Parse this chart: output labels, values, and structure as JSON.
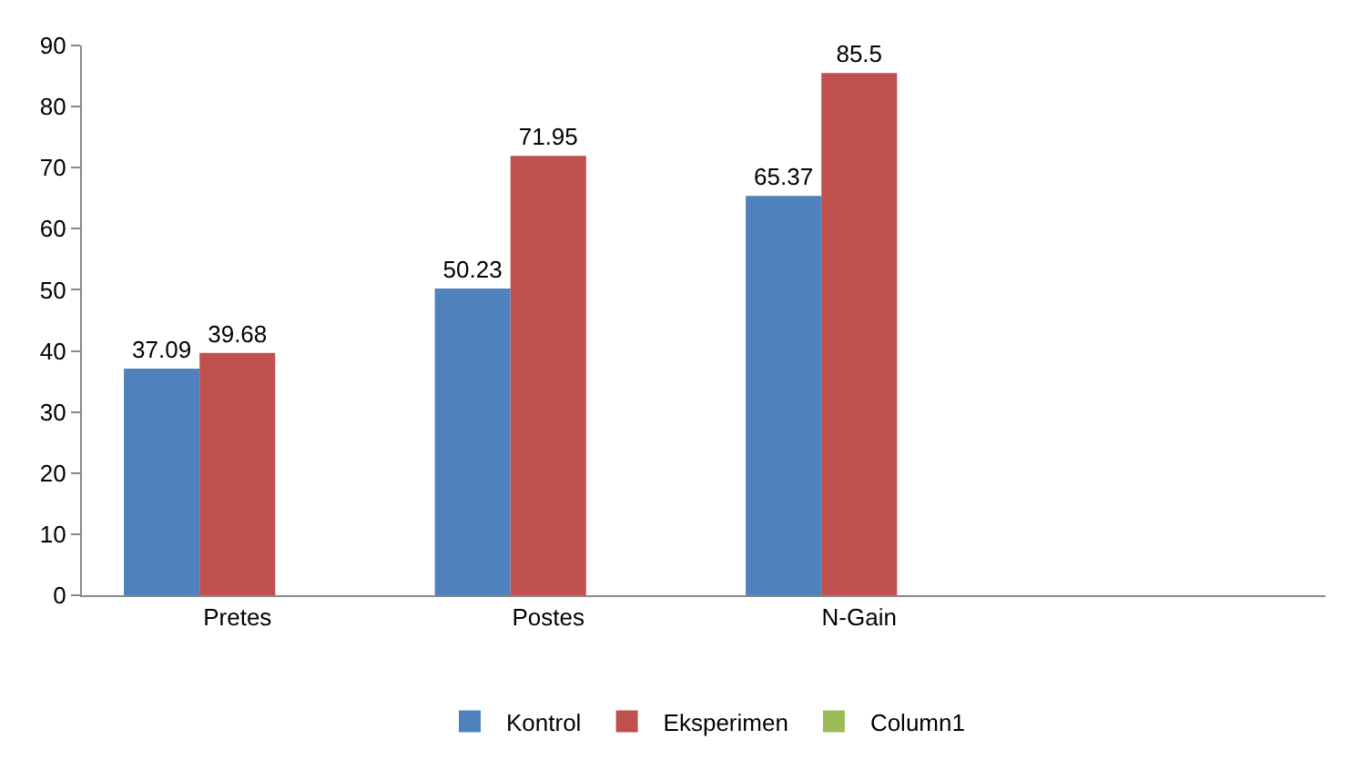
{
  "chart_data": {
    "type": "bar",
    "categories": [
      "Pretes",
      "Postes",
      "N-Gain",
      null
    ],
    "series": [
      {
        "name": "Kontrol",
        "color": "#4f81bd",
        "values": [
          37.09,
          50.23,
          65.37,
          null
        ]
      },
      {
        "name": "Eksperimen",
        "color": "#c0504d",
        "values": [
          39.68,
          71.95,
          85.5,
          null
        ]
      },
      {
        "name": "Column1",
        "color": "#9bbb59",
        "values": [
          null,
          null,
          null,
          null
        ]
      }
    ],
    "ylim": [
      0,
      90
    ],
    "yticks": [
      0,
      10,
      20,
      30,
      40,
      50,
      60,
      70,
      80,
      90
    ],
    "legend": "bottom",
    "data_labels": true
  }
}
